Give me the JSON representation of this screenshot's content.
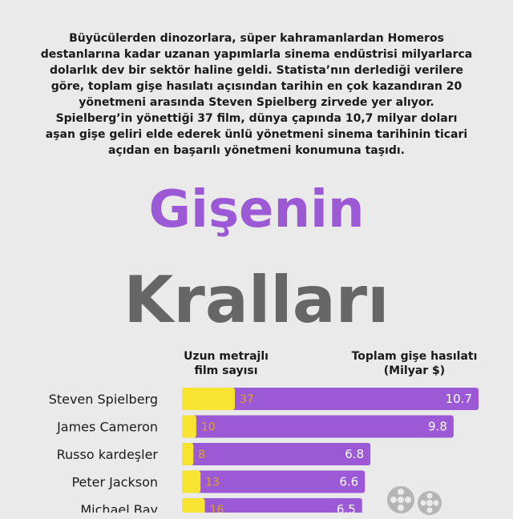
{
  "intro": "Büyücülerden dinozorlara, süper kahramanlardan Homeros destanlarına kadar uzanan yapımlarla sinema endüstrisi milyarlarca dolarlık dev bir sektör haline geldi. Statista’nın derlediği verilere göre, toplam gişe hasılatı açısından tarihin en çok kazandıran 20 yönetmeni arasında Steven Spielberg zirvede yer alıyor. Spielberg’in yönettiği 37 film, dünya çapında 10,7 milyar doları aşan gişe geliri elde ederek ünlü yönetmeni sinema tarihinin ticari açıdan en başarılı yönetmeni konumuna taşıdı.",
  "title_line1": "Gişenin",
  "title_line2": "Kralları",
  "colors": {
    "purple": "#9b59d6",
    "yellow": "#f6e332",
    "gray": "#666666",
    "bg": "#eaeaea"
  },
  "icon": "film-reel-icon",
  "chart_data": {
    "type": "bar",
    "orientation": "horizontal",
    "column_headers": {
      "films": "Uzun metrajlı film sayısı",
      "gross": "Toplam gişe hasılatı (Milyar $)"
    },
    "categories": [
      "Steven Spielberg",
      "James Cameron",
      "Russo kardeşler",
      "Peter Jackson",
      "Michael Bay"
    ],
    "series": [
      {
        "name": "Uzun metrajlı film sayısı",
        "values": [
          37,
          10,
          8,
          13,
          16
        ],
        "color": "#f6e332"
      },
      {
        "name": "Toplam gişe hasılatı (Milyar $)",
        "values": [
          10.7,
          9.8,
          6.8,
          6.6,
          6.5
        ],
        "color": "#9b59d6"
      }
    ],
    "gross_labels": [
      "10.7",
      "9.8",
      "6.8",
      "6.6",
      "6.5"
    ],
    "film_labels": [
      "37",
      "10",
      "8",
      "13",
      "16"
    ]
  }
}
